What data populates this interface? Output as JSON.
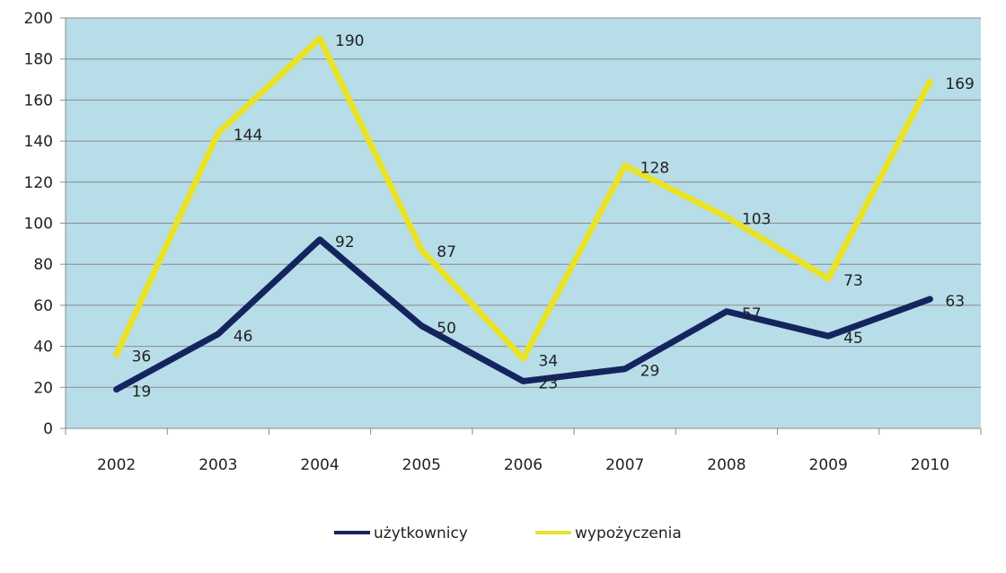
{
  "chart_data": {
    "type": "line",
    "title": "",
    "xlabel": "",
    "ylabel": "",
    "categories": [
      "2002",
      "2003",
      "2004",
      "2005",
      "2006",
      "2007",
      "2008",
      "2009",
      "2010"
    ],
    "ylim": [
      0,
      200
    ],
    "yticks": [
      0,
      20,
      40,
      60,
      80,
      100,
      120,
      140,
      160,
      180,
      200
    ],
    "grid": true,
    "legend_position": "bottom",
    "plot_background": "#b7dde8",
    "series": [
      {
        "name": "użytkownicy",
        "color": "#14245e",
        "values": [
          19,
          46,
          92,
          50,
          23,
          29,
          57,
          45,
          63
        ]
      },
      {
        "name": "wypożyczenia",
        "color": "#e8e22a",
        "values": [
          36,
          144,
          190,
          87,
          34,
          128,
          103,
          73,
          169
        ]
      }
    ]
  }
}
